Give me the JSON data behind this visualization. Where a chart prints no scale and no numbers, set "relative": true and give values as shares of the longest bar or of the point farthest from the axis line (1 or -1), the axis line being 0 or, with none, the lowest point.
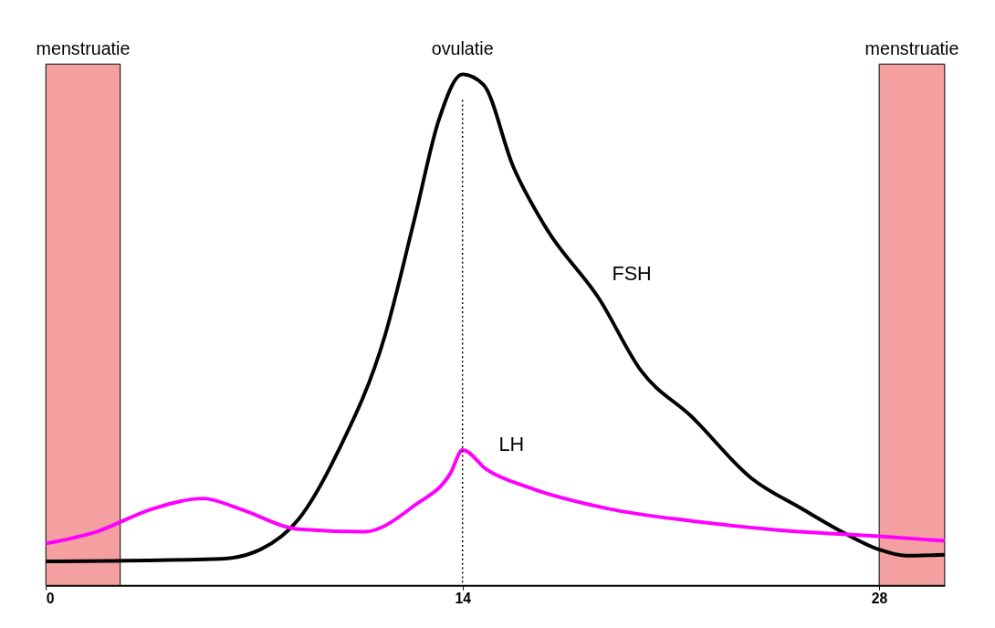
{
  "chart_data": {
    "type": "line",
    "relative": true,
    "xlim": [
      0,
      30.2
    ],
    "xticks": [
      0,
      14,
      28
    ],
    "grid": false,
    "marker": "none",
    "line_style": "solid",
    "series": [
      {
        "name": "FSH",
        "color": "#000000",
        "x": [
          0,
          5.9,
          7.2,
          8.5,
          9.8,
          11.4,
          12.4,
          13.2,
          14,
          14.7,
          15.7,
          16.8,
          18.6,
          20.0,
          21.7,
          23.7,
          25.4,
          26.9,
          28,
          28.9,
          30.2
        ],
        "values": [
          0.047,
          0.052,
          0.07,
          0.13,
          0.26,
          0.49,
          0.72,
          0.91,
          1.0,
          0.98,
          0.82,
          0.7,
          0.56,
          0.42,
          0.33,
          0.21,
          0.15,
          0.1,
          0.07,
          0.058,
          0.06
        ]
      },
      {
        "name": "LH",
        "color": "#ff00ff",
        "x": [
          0,
          1.7,
          3.6,
          5.3,
          6.5,
          8.5,
          10.7,
          12.4,
          13.6,
          14,
          14.8,
          16.3,
          18.9,
          21.7,
          24.6,
          28,
          30.2
        ],
        "values": [
          0.082,
          0.105,
          0.15,
          0.17,
          0.15,
          0.11,
          0.105,
          0.157,
          0.22,
          0.265,
          0.227,
          0.19,
          0.15,
          0.126,
          0.108,
          0.096,
          0.087
        ]
      }
    ],
    "ref_lines": [
      {
        "axis": "x",
        "value": 14,
        "label": "ovulatie",
        "color": "#000000",
        "line_style": "dotted"
      }
    ],
    "bands": [
      {
        "axis": "x",
        "from": 0,
        "to": 2.5,
        "label": "menstruatie",
        "color": "#f4a0a0"
      },
      {
        "axis": "x",
        "from": 28,
        "to": 30.2,
        "label": "menstruatie",
        "color": "#f4a0a0"
      }
    ]
  }
}
